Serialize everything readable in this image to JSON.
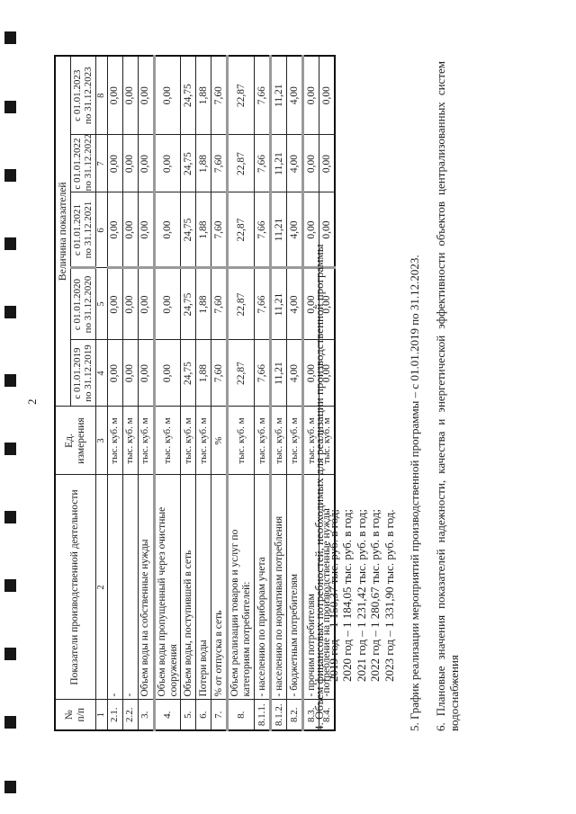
{
  "page_number": "2",
  "table": {
    "header": {
      "no_line1": "№",
      "no_line2": "п/п",
      "indicators": "Показатели производственной деятельности",
      "unit": "Ед. измерения",
      "values_group": "Величина показателей",
      "periods": [
        {
          "from": "с 01.01.2019",
          "to": "по 31.12.2019"
        },
        {
          "from": "с 01.01.2020",
          "to": "по 31.12.2020"
        },
        {
          "from": "с 01.01.2021",
          "to": "по 31.12.2021"
        },
        {
          "from": "с 01.01.2022",
          "to": "по 31.12.2022"
        },
        {
          "from": "с 01.01.2023",
          "to": "по 31.12.2023"
        }
      ],
      "column_numbers": [
        "1",
        "2",
        "3",
        "4",
        "5",
        "6",
        "7",
        "8"
      ]
    },
    "rows": [
      {
        "no": "2.1.",
        "label": "-",
        "unit": "тыс. куб. м",
        "values": [
          "0,00",
          "0,00",
          "0,00",
          "0,00",
          "0,00"
        ]
      },
      {
        "no": "2.2.",
        "label": "-",
        "unit": "тыс. куб. м",
        "values": [
          "0,00",
          "0,00",
          "0,00",
          "0,00",
          "0,00"
        ]
      },
      {
        "no": "3.",
        "label": "Объем воды на собственные нужды",
        "unit": "тыс. куб. м",
        "values": [
          "0,00",
          "0,00",
          "0,00",
          "0,00",
          "0,00"
        ]
      },
      {
        "no": "4.",
        "label": "Объем воды пропущенный через очистные сооружения",
        "unit": "тыс. куб. м",
        "values": [
          "0,00",
          "0,00",
          "0,00",
          "0,00",
          "0,00"
        ]
      },
      {
        "no": "5.",
        "label": "Объем воды, поступившей в сеть",
        "unit": "тыс. куб. м",
        "values": [
          "24,75",
          "24,75",
          "24,75",
          "24,75",
          "24,75"
        ]
      },
      {
        "no": "6.",
        "label": "Потери воды",
        "unit": "тыс. куб. м",
        "values": [
          "1,88",
          "1,88",
          "1,88",
          "1,88",
          "1,88"
        ]
      },
      {
        "no": "7.",
        "label": "% от отпуска в сеть",
        "unit": "%",
        "values": [
          "7,60",
          "7,60",
          "7,60",
          "7,60",
          "7,60"
        ]
      },
      {
        "no": "8.",
        "label": "Объем реализации товаров и услуг по категориям потребителей:",
        "unit": "тыс. куб. м",
        "values": [
          "22,87",
          "22,87",
          "22,87",
          "22,87",
          "22,87"
        ]
      },
      {
        "no": "8.1.1.",
        "label": "- населению по приборам учета",
        "unit": "тыс. куб. м",
        "values": [
          "7,66",
          "7,66",
          "7,66",
          "7,66",
          "7,66"
        ]
      },
      {
        "no": "8.1.2.",
        "label": "- населению по нормативам потребления",
        "unit": "тыс. куб. м",
        "values": [
          "11,21",
          "11,21",
          "11,21",
          "11,21",
          "11,21"
        ]
      },
      {
        "no": "8.2.",
        "label": "- бюджетным потребителям",
        "unit": "тыс. куб. м",
        "values": [
          "4,00",
          "4,00",
          "4,00",
          "4,00",
          "4,00"
        ]
      },
      {
        "no": "8.3.",
        "label": "- прочим потребителям",
        "unit": "тыс. куб. м",
        "values": [
          "0,00",
          "0,00",
          "0,00",
          "0,00",
          "0,00"
        ]
      },
      {
        "no": "8.4.",
        "label": "-потребление на производственные нужды",
        "unit": "тыс. куб. м",
        "values": [
          "0,00",
          "0,00",
          "0,00",
          "0,00",
          "0,00"
        ]
      }
    ]
  },
  "notes": [
    {
      "text": "4. Объем финансовых потребностей, необходимых для реализации производственной программы"
    },
    {
      "text": "2019 год – 1 150,37 тыс. руб. в год;",
      "indent": true
    },
    {
      "text": "2020 год – 1 184,05 тыс. руб. в год;",
      "indent": true
    },
    {
      "text": "2021 год – 1 231,42 тыс. руб. в год;",
      "indent": true
    },
    {
      "text": "2022 год – 1 280,67 тыс. руб. в год;",
      "indent": true
    },
    {
      "text": "2023 год – 1 331,90 тыс. руб. в год.",
      "indent": true
    },
    {
      "text": "5. График реализации мероприятий производственной программы – с 01.01.2019 по 31.12.2023.",
      "space_before": true
    },
    {
      "text": "6. Плановые значения показателей надежности, качества и энергетической эффективности объектов централизованных систем",
      "space_before": true,
      "justify": true
    },
    {
      "text": "водоснабжения"
    }
  ]
}
